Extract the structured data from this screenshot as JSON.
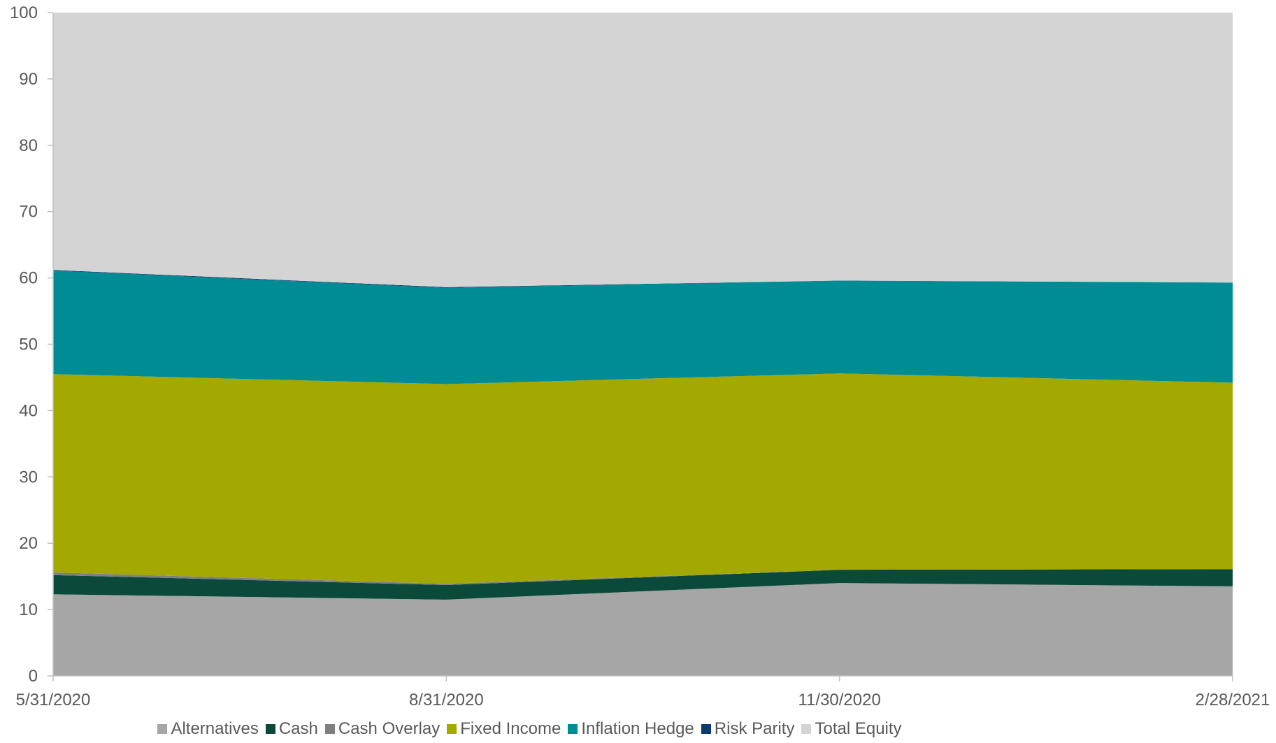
{
  "chart_data": {
    "type": "area",
    "stacked": true,
    "categories": [
      "5/31/2020",
      "8/31/2020",
      "11/30/2020",
      "2/28/2021"
    ],
    "ylim": [
      0,
      100
    ],
    "yticks": [
      "0",
      "10",
      "20",
      "30",
      "40",
      "50",
      "60",
      "70",
      "80",
      "90",
      "100"
    ],
    "grid": false,
    "legend_position": "bottom",
    "series": [
      {
        "name": "Alternatives",
        "color": "#a6a6a6",
        "values": [
          12.3,
          11.5,
          14.0,
          13.5
        ]
      },
      {
        "name": "Cash",
        "color": "#0b4a3a",
        "values": [
          2.9,
          2.2,
          2.0,
          2.6
        ]
      },
      {
        "name": "Cash Overlay",
        "color": "#7f7f7f",
        "values": [
          0.4,
          0.2,
          0.0,
          0.0
        ]
      },
      {
        "name": "Fixed Income",
        "color": "#a3a900",
        "values": [
          29.9,
          30.1,
          29.6,
          28.1
        ]
      },
      {
        "name": "Inflation Hedge",
        "color": "#008c95",
        "values": [
          15.6,
          14.5,
          14.0,
          15.1
        ]
      },
      {
        "name": "Risk Parity",
        "color": "#0d3b6e",
        "values": [
          0.1,
          0.1,
          0.0,
          0.0
        ]
      },
      {
        "name": "Total Equity",
        "color": "#d4d4d4",
        "values": [
          38.8,
          41.4,
          40.4,
          40.7
        ]
      }
    ]
  }
}
